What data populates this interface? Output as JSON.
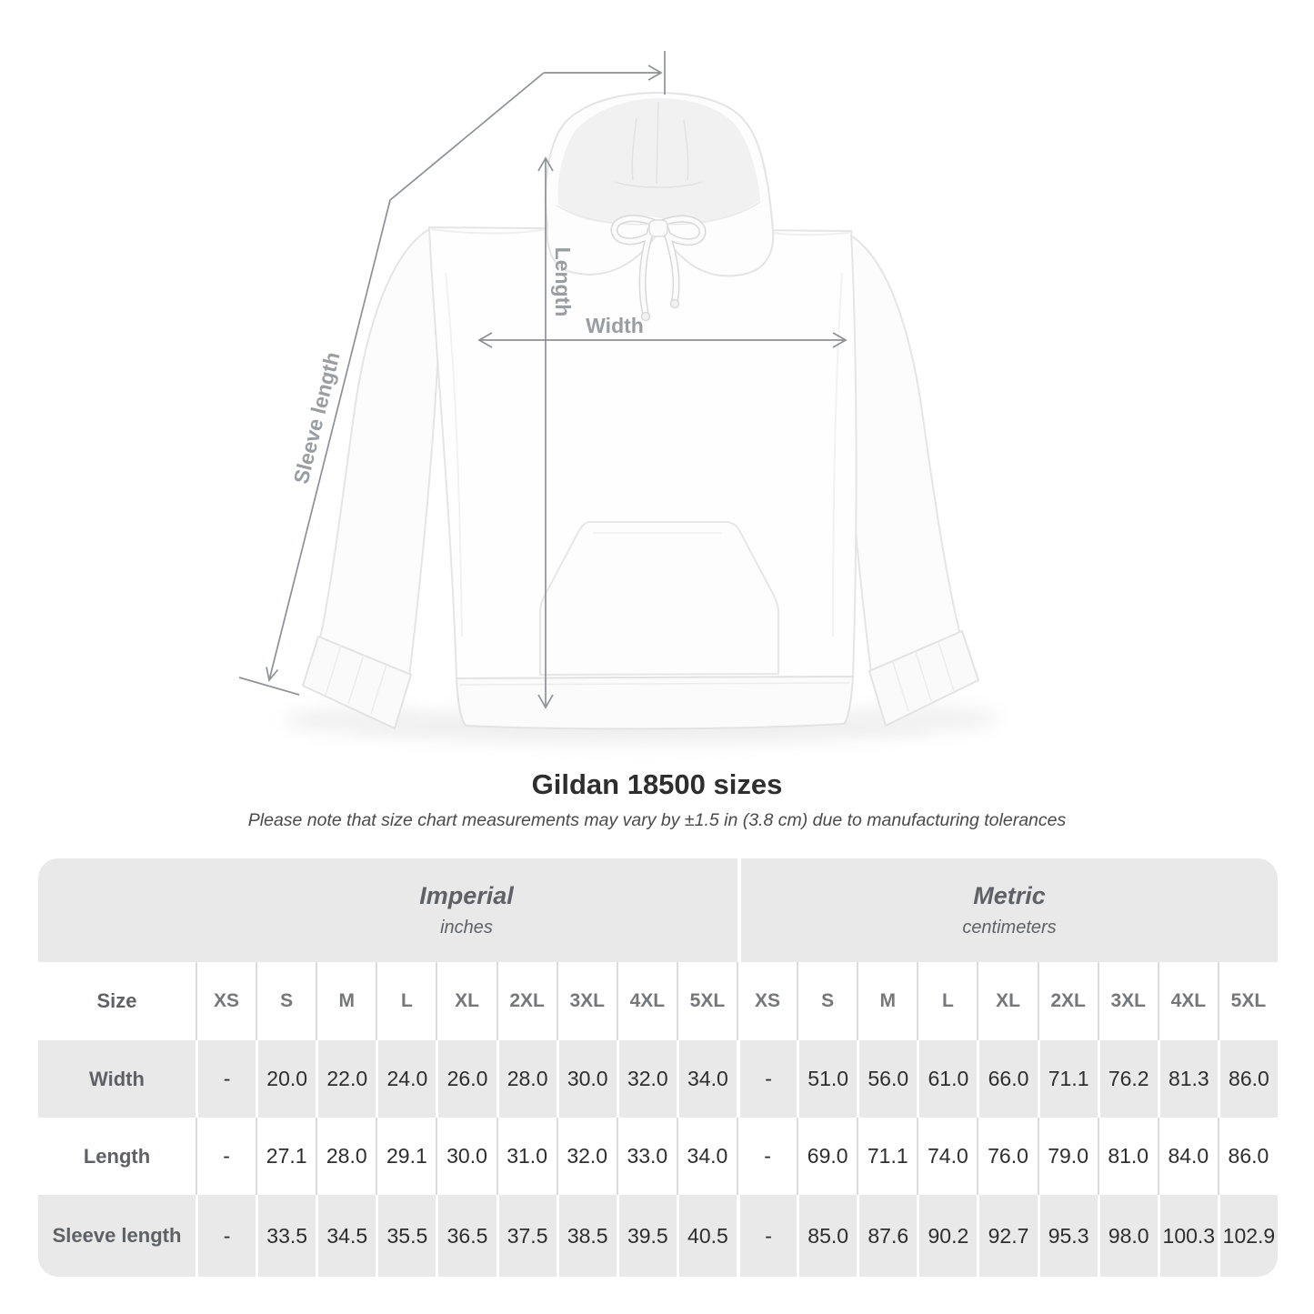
{
  "title": "Gildan 18500 sizes",
  "subtitle": "Please note that size chart measurements may vary by ±1.5 in (3.8 cm) due to manufacturing tolerances",
  "figure": {
    "width_label": "Width",
    "length_label": "Length",
    "sleeve_label": "Sleeve length"
  },
  "table": {
    "corner_label": "Size",
    "sections": [
      {
        "name": "Imperial",
        "unit": "inches"
      },
      {
        "name": "Metric",
        "unit": "centimeters"
      }
    ],
    "sizes": [
      "XS",
      "S",
      "M",
      "L",
      "XL",
      "2XL",
      "3XL",
      "4XL",
      "5XL"
    ],
    "rows": [
      {
        "label": "Width",
        "imperial": [
          "-",
          "20.0",
          "22.0",
          "24.0",
          "26.0",
          "28.0",
          "30.0",
          "32.0",
          "34.0"
        ],
        "metric": [
          "-",
          "51.0",
          "56.0",
          "61.0",
          "66.0",
          "71.1",
          "76.2",
          "81.3",
          "86.0"
        ]
      },
      {
        "label": "Length",
        "imperial": [
          "-",
          "27.1",
          "28.0",
          "29.1",
          "30.0",
          "31.0",
          "32.0",
          "33.0",
          "34.0"
        ],
        "metric": [
          "-",
          "69.0",
          "71.1",
          "74.0",
          "76.0",
          "79.0",
          "81.0",
          "84.0",
          "86.0"
        ]
      },
      {
        "label": "Sleeve length",
        "imperial": [
          "-",
          "33.5",
          "34.5",
          "35.5",
          "36.5",
          "37.5",
          "38.5",
          "39.5",
          "40.5"
        ],
        "metric": [
          "-",
          "85.0",
          "87.6",
          "90.2",
          "92.7",
          "95.3",
          "98.0",
          "100.3",
          "102.9"
        ]
      }
    ]
  },
  "colors": {
    "table_band_gray": "#e9e9e9",
    "separator_on_white": "#dcdcdc",
    "separator_on_gray": "#ffffff",
    "value_text": "#2e2e2e",
    "header_text": "#74787b",
    "annotation_line": "#8d9196",
    "annotation_label": "#989ea2"
  },
  "chart_data": {
    "type": "table",
    "title": "Gildan 18500 sizes",
    "note": "Please note that size chart measurements may vary by ±1.5 in (3.8 cm) due to manufacturing tolerances",
    "column_groups": [
      {
        "label": "Imperial",
        "unit": "inches",
        "columns": [
          "XS",
          "S",
          "M",
          "L",
          "XL",
          "2XL",
          "3XL",
          "4XL",
          "5XL"
        ]
      },
      {
        "label": "Metric",
        "unit": "centimeters",
        "columns": [
          "XS",
          "S",
          "M",
          "L",
          "XL",
          "2XL",
          "3XL",
          "4XL",
          "5XL"
        ]
      }
    ],
    "rows": [
      {
        "measure": "Width",
        "imperial_in": [
          null,
          20.0,
          22.0,
          24.0,
          26.0,
          28.0,
          30.0,
          32.0,
          34.0
        ],
        "metric_cm": [
          null,
          51.0,
          56.0,
          61.0,
          66.0,
          71.1,
          76.2,
          81.3,
          86.0
        ]
      },
      {
        "measure": "Length",
        "imperial_in": [
          null,
          27.1,
          28.0,
          29.1,
          30.0,
          31.0,
          32.0,
          33.0,
          34.0
        ],
        "metric_cm": [
          null,
          69.0,
          71.1,
          74.0,
          76.0,
          79.0,
          81.0,
          84.0,
          86.0
        ]
      },
      {
        "measure": "Sleeve length",
        "imperial_in": [
          null,
          33.5,
          34.5,
          35.5,
          36.5,
          37.5,
          38.5,
          39.5,
          40.5
        ],
        "metric_cm": [
          null,
          85.0,
          87.6,
          90.2,
          92.7,
          95.3,
          98.0,
          100.3,
          102.9
        ]
      }
    ]
  }
}
